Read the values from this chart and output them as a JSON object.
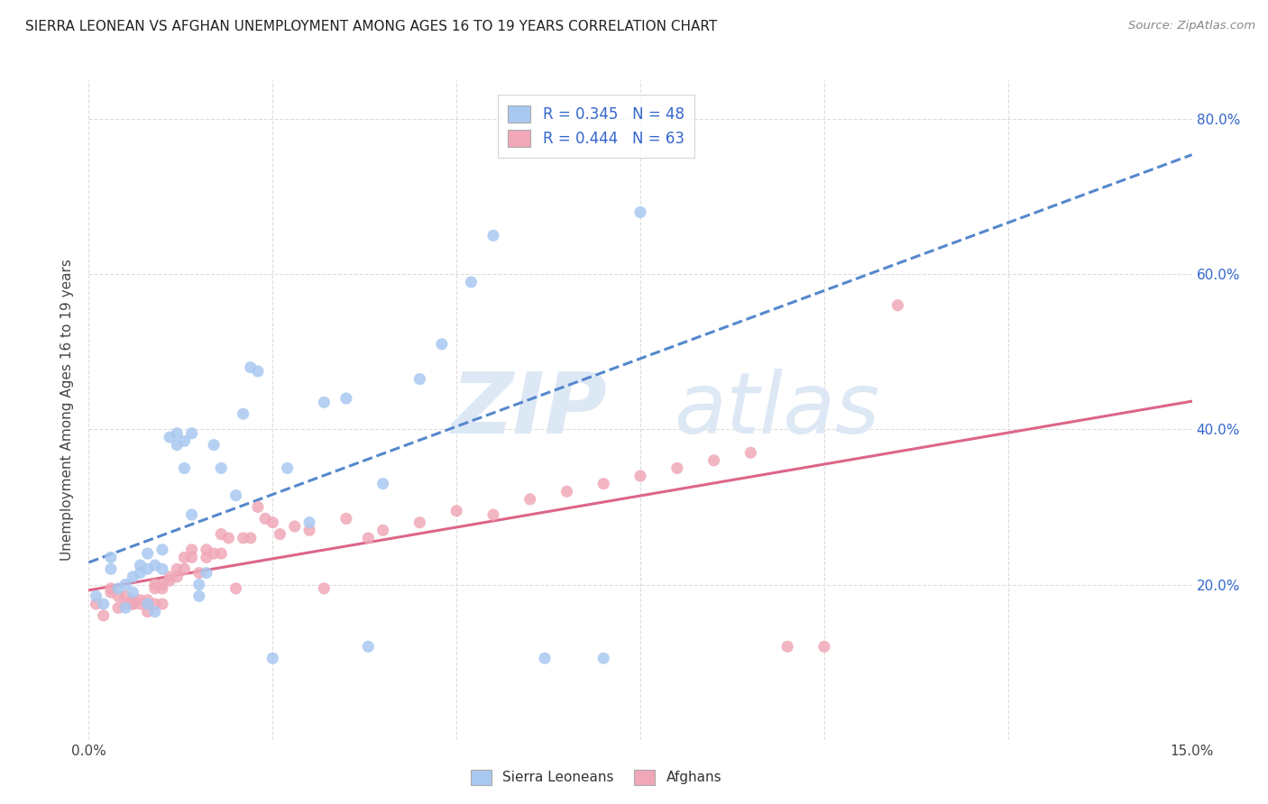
{
  "title": "SIERRA LEONEAN VS AFGHAN UNEMPLOYMENT AMONG AGES 16 TO 19 YEARS CORRELATION CHART",
  "source": "Source: ZipAtlas.com",
  "ylabel_label": "Unemployment Among Ages 16 to 19 years",
  "legend_sl": "R = 0.345   N = 48",
  "legend_af": "R = 0.444   N = 63",
  "legend_label_sl": "Sierra Leoneans",
  "legend_label_af": "Afghans",
  "color_sl": "#a8c8f0",
  "color_af": "#f0a8b8",
  "color_sl_line": "#5588cc",
  "color_af_line": "#dd6688",
  "color_legend_text": "#3366cc",
  "sl_x": [
    0.001,
    0.002,
    0.003,
    0.003,
    0.004,
    0.005,
    0.005,
    0.006,
    0.006,
    0.007,
    0.007,
    0.008,
    0.008,
    0.008,
    0.009,
    0.009,
    0.01,
    0.01,
    0.011,
    0.012,
    0.012,
    0.013,
    0.013,
    0.014,
    0.014,
    0.015,
    0.015,
    0.016,
    0.017,
    0.018,
    0.02,
    0.021,
    0.022,
    0.023,
    0.025,
    0.027,
    0.03,
    0.032,
    0.035,
    0.038,
    0.04,
    0.045,
    0.048,
    0.052,
    0.055,
    0.062,
    0.07,
    0.075
  ],
  "sl_y": [
    0.185,
    0.175,
    0.22,
    0.235,
    0.195,
    0.17,
    0.2,
    0.21,
    0.19,
    0.225,
    0.215,
    0.175,
    0.22,
    0.24,
    0.165,
    0.225,
    0.245,
    0.22,
    0.39,
    0.38,
    0.395,
    0.385,
    0.35,
    0.29,
    0.395,
    0.185,
    0.2,
    0.215,
    0.38,
    0.35,
    0.315,
    0.42,
    0.48,
    0.475,
    0.105,
    0.35,
    0.28,
    0.435,
    0.44,
    0.12,
    0.33,
    0.465,
    0.51,
    0.59,
    0.65,
    0.105,
    0.105,
    0.68
  ],
  "af_x": [
    0.001,
    0.002,
    0.003,
    0.003,
    0.004,
    0.004,
    0.005,
    0.005,
    0.006,
    0.006,
    0.006,
    0.007,
    0.007,
    0.008,
    0.008,
    0.008,
    0.009,
    0.009,
    0.009,
    0.01,
    0.01,
    0.01,
    0.011,
    0.011,
    0.012,
    0.012,
    0.013,
    0.013,
    0.014,
    0.014,
    0.015,
    0.016,
    0.016,
    0.017,
    0.018,
    0.018,
    0.019,
    0.02,
    0.021,
    0.022,
    0.023,
    0.024,
    0.025,
    0.026,
    0.028,
    0.03,
    0.032,
    0.035,
    0.038,
    0.04,
    0.045,
    0.05,
    0.055,
    0.06,
    0.065,
    0.07,
    0.075,
    0.08,
    0.085,
    0.09,
    0.095,
    0.1,
    0.11
  ],
  "af_y": [
    0.175,
    0.16,
    0.19,
    0.195,
    0.17,
    0.185,
    0.175,
    0.185,
    0.175,
    0.18,
    0.175,
    0.18,
    0.175,
    0.175,
    0.165,
    0.18,
    0.195,
    0.175,
    0.2,
    0.195,
    0.2,
    0.175,
    0.21,
    0.205,
    0.22,
    0.21,
    0.235,
    0.22,
    0.235,
    0.245,
    0.215,
    0.235,
    0.245,
    0.24,
    0.24,
    0.265,
    0.26,
    0.195,
    0.26,
    0.26,
    0.3,
    0.285,
    0.28,
    0.265,
    0.275,
    0.27,
    0.195,
    0.285,
    0.26,
    0.27,
    0.28,
    0.295,
    0.29,
    0.31,
    0.32,
    0.33,
    0.34,
    0.35,
    0.36,
    0.37,
    0.12,
    0.12,
    0.56
  ],
  "xlim": [
    0.0,
    0.15
  ],
  "ylim": [
    0.0,
    0.85
  ],
  "background_color": "#ffffff",
  "grid_color": "#dddddd",
  "right_yticks": [
    0.2,
    0.4,
    0.6,
    0.8
  ],
  "right_yticklabels": [
    "20.0%",
    "40.0%",
    "60.0%",
    "80.0%"
  ]
}
